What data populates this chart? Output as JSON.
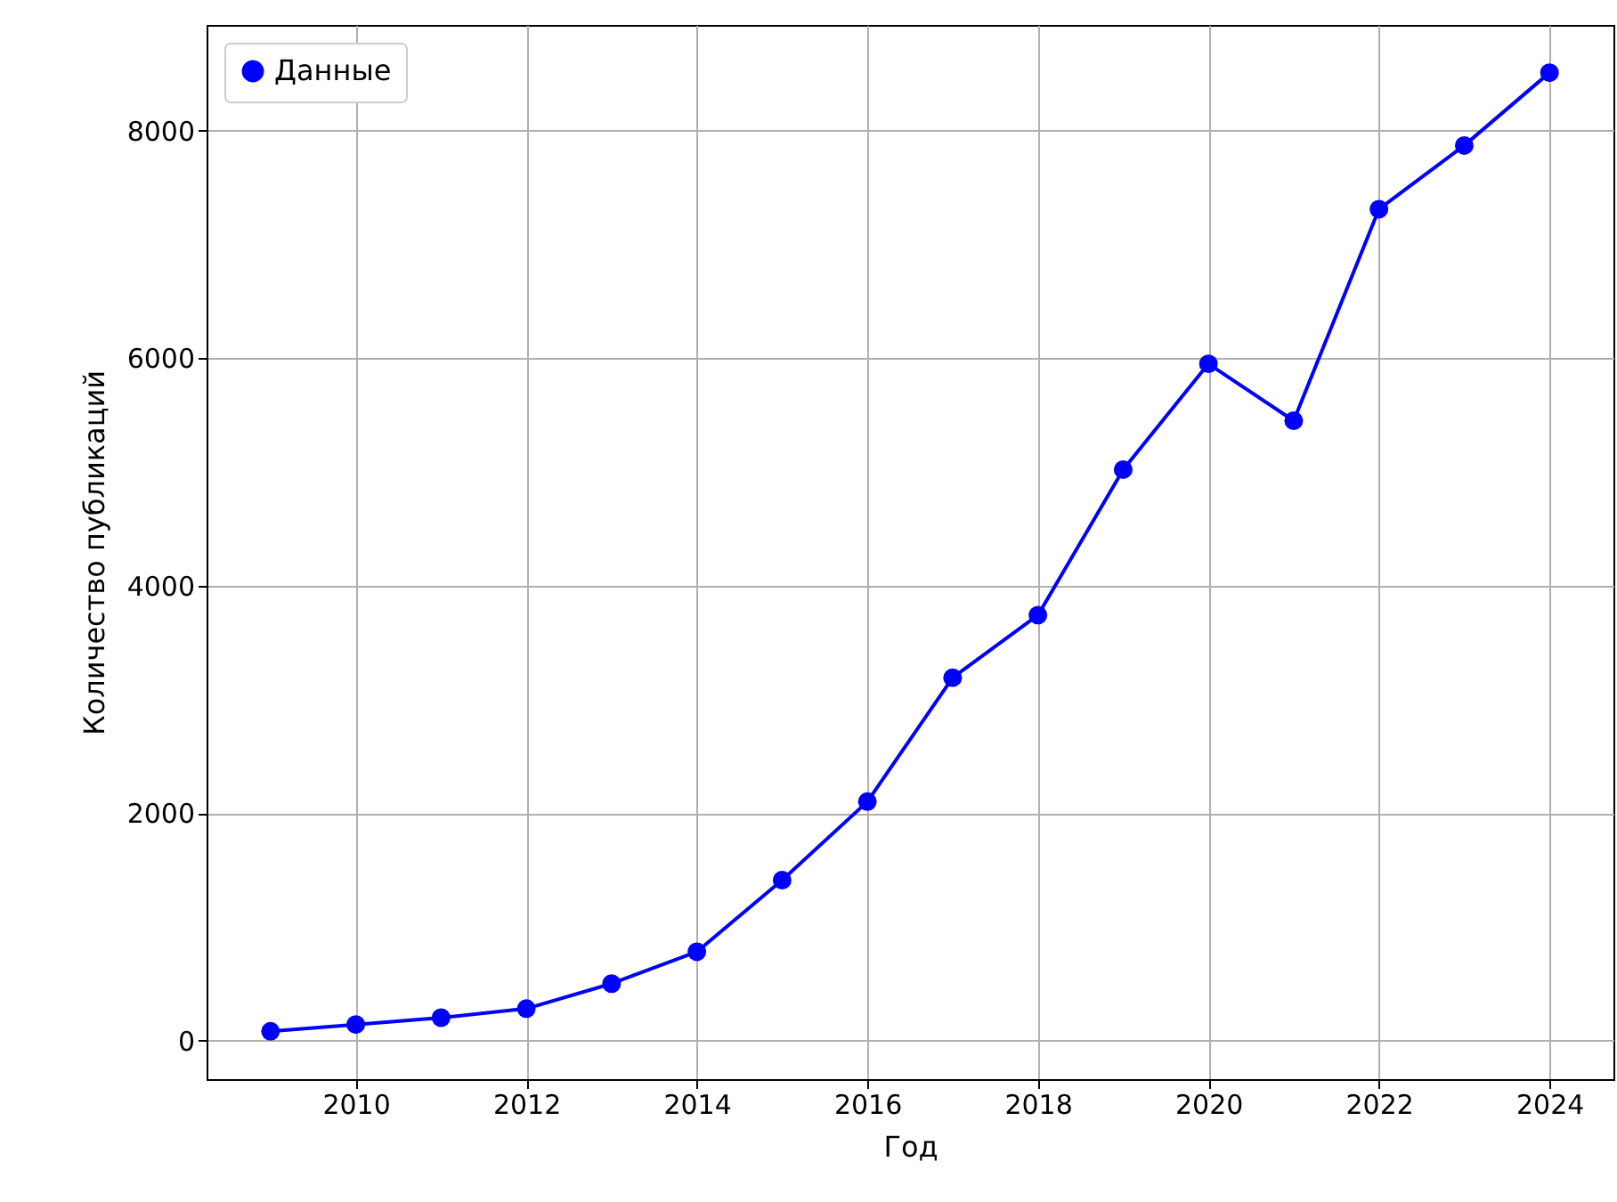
{
  "chart_data": {
    "type": "line",
    "xlabel": "Год",
    "ylabel": "Количество публикаций",
    "x": [
      2009,
      2010,
      2011,
      2012,
      2013,
      2014,
      2015,
      2016,
      2017,
      2018,
      2019,
      2020,
      2021,
      2022,
      2023,
      2024
    ],
    "series": [
      {
        "name": "Данные",
        "color": "#0000ff",
        "values": [
          80,
          140,
          200,
          280,
          500,
          780,
          1410,
          2100,
          3190,
          3740,
          5020,
          5950,
          5450,
          7310,
          7870,
          8510
        ]
      }
    ],
    "xlim": [
      2008.25,
      2024.75
    ],
    "xticks": [
      2010,
      2012,
      2014,
      2016,
      2018,
      2020,
      2022,
      2024
    ],
    "ylim": [
      -340,
      8930
    ],
    "yticks": [
      0,
      2000,
      4000,
      6000,
      8000
    ],
    "grid": true,
    "legend": "top left",
    "marker": "circle",
    "line_style": "solid"
  }
}
